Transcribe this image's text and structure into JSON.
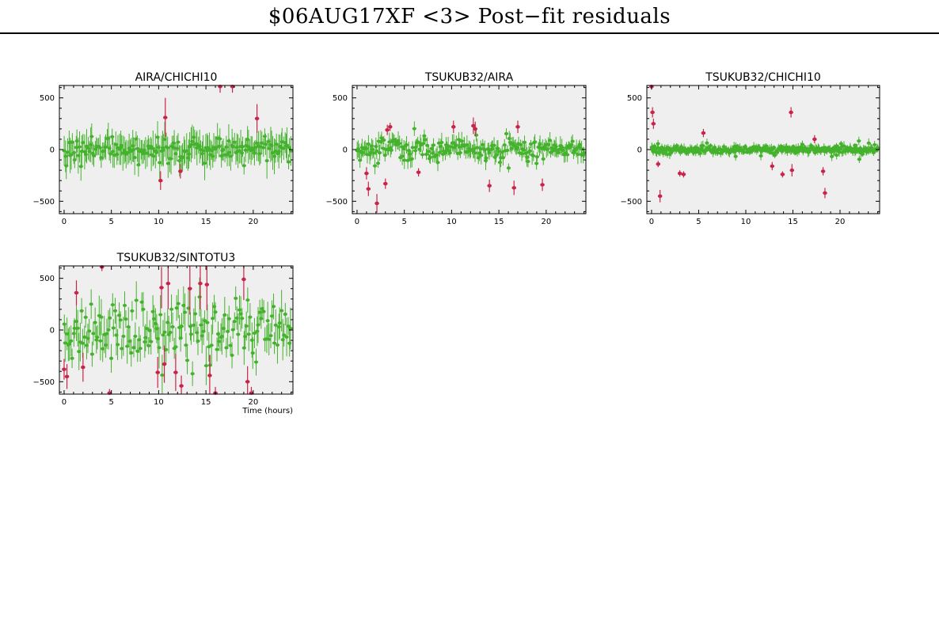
{
  "page": {
    "title": "$06AUG17XF <3> Post−fit residuals"
  },
  "colors": {
    "good_points": "#44b22c",
    "bad_points": "#c8244a",
    "plot_bg": "#efefef",
    "axes": "#000000"
  },
  "chart_data": [
    {
      "type": "scatter",
      "title": "AIRA/CHICHI10",
      "xlabel": "",
      "ylabel": "",
      "xlim": [
        -0.5,
        24.2
      ],
      "ylim": [
        -620,
        620
      ],
      "xticks": [
        0,
        5,
        10,
        15,
        20
      ],
      "yticks": [
        -500,
        0,
        500
      ],
      "grid": false,
      "noise_level": 60,
      "n_good": 190,
      "good_error": 130,
      "outliers": [
        {
          "x": 10.2,
          "y": -300,
          "err": 90
        },
        {
          "x": 10.7,
          "y": 310,
          "err": 190
        },
        {
          "x": 12.3,
          "y": -210,
          "err": 70
        },
        {
          "x": 16.5,
          "y": 610,
          "err": 60
        },
        {
          "x": 17.8,
          "y": 610,
          "err": 60
        },
        {
          "x": 20.4,
          "y": 300,
          "err": 140
        }
      ]
    },
    {
      "type": "scatter",
      "title": "TSUKUB32/AIRA",
      "xlabel": "",
      "ylabel": "",
      "xlim": [
        -0.5,
        24.2
      ],
      "ylim": [
        -620,
        620
      ],
      "xticks": [
        0,
        5,
        10,
        15,
        20
      ],
      "yticks": [
        -500,
        0,
        500
      ],
      "grid": false,
      "noise_level": 55,
      "n_good": 220,
      "good_error": 70,
      "outliers": [
        {
          "x": 1.0,
          "y": -230,
          "err": 60
        },
        {
          "x": 1.2,
          "y": -380,
          "err": 70
        },
        {
          "x": 2.1,
          "y": -520,
          "err": 90
        },
        {
          "x": 3.0,
          "y": -330,
          "err": 50
        },
        {
          "x": 3.2,
          "y": 190,
          "err": 50
        },
        {
          "x": 3.5,
          "y": 220,
          "err": 40
        },
        {
          "x": 6.5,
          "y": -220,
          "err": 40
        },
        {
          "x": 10.2,
          "y": 220,
          "err": 60
        },
        {
          "x": 12.3,
          "y": 230,
          "err": 80
        },
        {
          "x": 12.5,
          "y": 200,
          "err": 70
        },
        {
          "x": 14.0,
          "y": -350,
          "err": 60
        },
        {
          "x": 16.6,
          "y": -370,
          "err": 70
        },
        {
          "x": 17.0,
          "y": 220,
          "err": 60
        },
        {
          "x": 19.6,
          "y": -340,
          "err": 60
        }
      ]
    },
    {
      "type": "scatter",
      "title": "TSUKUB32/CHICHI10",
      "xlabel": "",
      "ylabel": "",
      "xlim": [
        -0.5,
        24.2
      ],
      "ylim": [
        -620,
        620
      ],
      "xticks": [
        0,
        5,
        10,
        15,
        20
      ],
      "yticks": [
        -500,
        0,
        500
      ],
      "grid": false,
      "noise_level": 22,
      "n_good": 320,
      "good_error": 35,
      "outliers": [
        {
          "x": 0.0,
          "y": 610,
          "err": 30
        },
        {
          "x": 0.1,
          "y": 360,
          "err": 50
        },
        {
          "x": 0.2,
          "y": 250,
          "err": 50
        },
        {
          "x": 0.7,
          "y": -140,
          "err": 30
        },
        {
          "x": 0.9,
          "y": -450,
          "err": 60
        },
        {
          "x": 3.0,
          "y": -230,
          "err": 30
        },
        {
          "x": 3.4,
          "y": -240,
          "err": 30
        },
        {
          "x": 5.5,
          "y": 160,
          "err": 40
        },
        {
          "x": 12.8,
          "y": -160,
          "err": 40
        },
        {
          "x": 13.9,
          "y": -240,
          "err": 30
        },
        {
          "x": 14.8,
          "y": 360,
          "err": 50
        },
        {
          "x": 14.9,
          "y": -200,
          "err": 60
        },
        {
          "x": 17.3,
          "y": 100,
          "err": 40
        },
        {
          "x": 18.2,
          "y": -210,
          "err": 40
        },
        {
          "x": 18.4,
          "y": -420,
          "err": 50
        }
      ]
    },
    {
      "type": "scatter",
      "title": "TSUKUB32/SINTOTU3",
      "xlabel": "Time (hours)",
      "ylabel": "",
      "xlim": [
        -0.5,
        24.2
      ],
      "ylim": [
        -620,
        620
      ],
      "xticks": [
        0,
        5,
        10,
        15,
        20
      ],
      "yticks": [
        -500,
        0,
        500
      ],
      "grid": false,
      "noise_level": 150,
      "n_good": 170,
      "good_error": 150,
      "outliers": [
        {
          "x": 0.0,
          "y": -380,
          "err": 100
        },
        {
          "x": 0.3,
          "y": -450,
          "err": 120
        },
        {
          "x": 1.3,
          "y": 360,
          "err": 120
        },
        {
          "x": 2.0,
          "y": -360,
          "err": 140
        },
        {
          "x": 4.0,
          "y": 610,
          "err": 40
        },
        {
          "x": 4.8,
          "y": -610,
          "err": 40
        },
        {
          "x": 9.9,
          "y": -410,
          "err": 150
        },
        {
          "x": 10.3,
          "y": 410,
          "err": 200
        },
        {
          "x": 10.6,
          "y": -330,
          "err": 180
        },
        {
          "x": 11.0,
          "y": 450,
          "err": 250
        },
        {
          "x": 11.8,
          "y": -410,
          "err": 180
        },
        {
          "x": 12.4,
          "y": -540,
          "err": 100
        },
        {
          "x": 13.3,
          "y": 400,
          "err": 250
        },
        {
          "x": 14.4,
          "y": 450,
          "err": 250
        },
        {
          "x": 15.1,
          "y": 440,
          "err": 250
        },
        {
          "x": 15.4,
          "y": -440,
          "err": 200
        },
        {
          "x": 16.0,
          "y": -610,
          "err": 60
        },
        {
          "x": 19.0,
          "y": 490,
          "err": 200
        },
        {
          "x": 19.4,
          "y": -500,
          "err": 150
        },
        {
          "x": 19.8,
          "y": -610,
          "err": 60
        }
      ]
    }
  ]
}
